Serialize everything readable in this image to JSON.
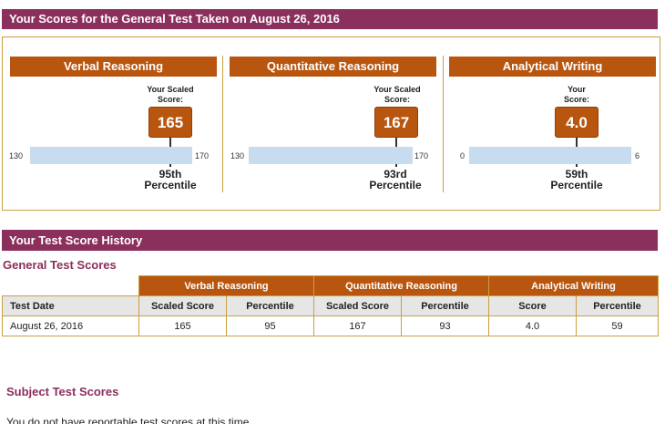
{
  "header": {
    "title": "Your Scores for the General Test Taken on August 26, 2016"
  },
  "panels": [
    {
      "title": "Verbal Reasoning",
      "scaled_label": "Your Scaled Score:",
      "score": "165",
      "min": "130",
      "max": "170",
      "score_fraction": 0.875,
      "percentile": "95th Percentile"
    },
    {
      "title": "Quantitative Reasoning",
      "scaled_label": "Your Scaled Score:",
      "score": "167",
      "min": "130",
      "max": "170",
      "score_fraction": 0.925,
      "percentile": "93rd Percentile"
    },
    {
      "title": "Analytical Writing",
      "scaled_label": "Your Score:",
      "score": "4.0",
      "min": "0",
      "max": "6",
      "score_fraction": 0.6667,
      "percentile": "59th Percentile"
    }
  ],
  "history": {
    "title": "Your Test Score History",
    "general_title": "General Test Scores",
    "groups": [
      "Verbal Reasoning",
      "Quantitative Reasoning",
      "Analytical Writing"
    ],
    "columns": [
      "Test Date",
      "Scaled Score",
      "Percentile",
      "Scaled Score",
      "Percentile",
      "Score",
      "Percentile"
    ],
    "rows": [
      [
        "August 26, 2016",
        "165",
        "95",
        "167",
        "93",
        "4.0",
        "59"
      ]
    ]
  },
  "subject": {
    "title": "Subject Test Scores",
    "message": "You do not have reportable test scores at this time."
  },
  "colors": {
    "brand": "#8b2f5c",
    "accent": "#b8560f",
    "bar": "#c7dcef",
    "border": "#c8a040"
  }
}
